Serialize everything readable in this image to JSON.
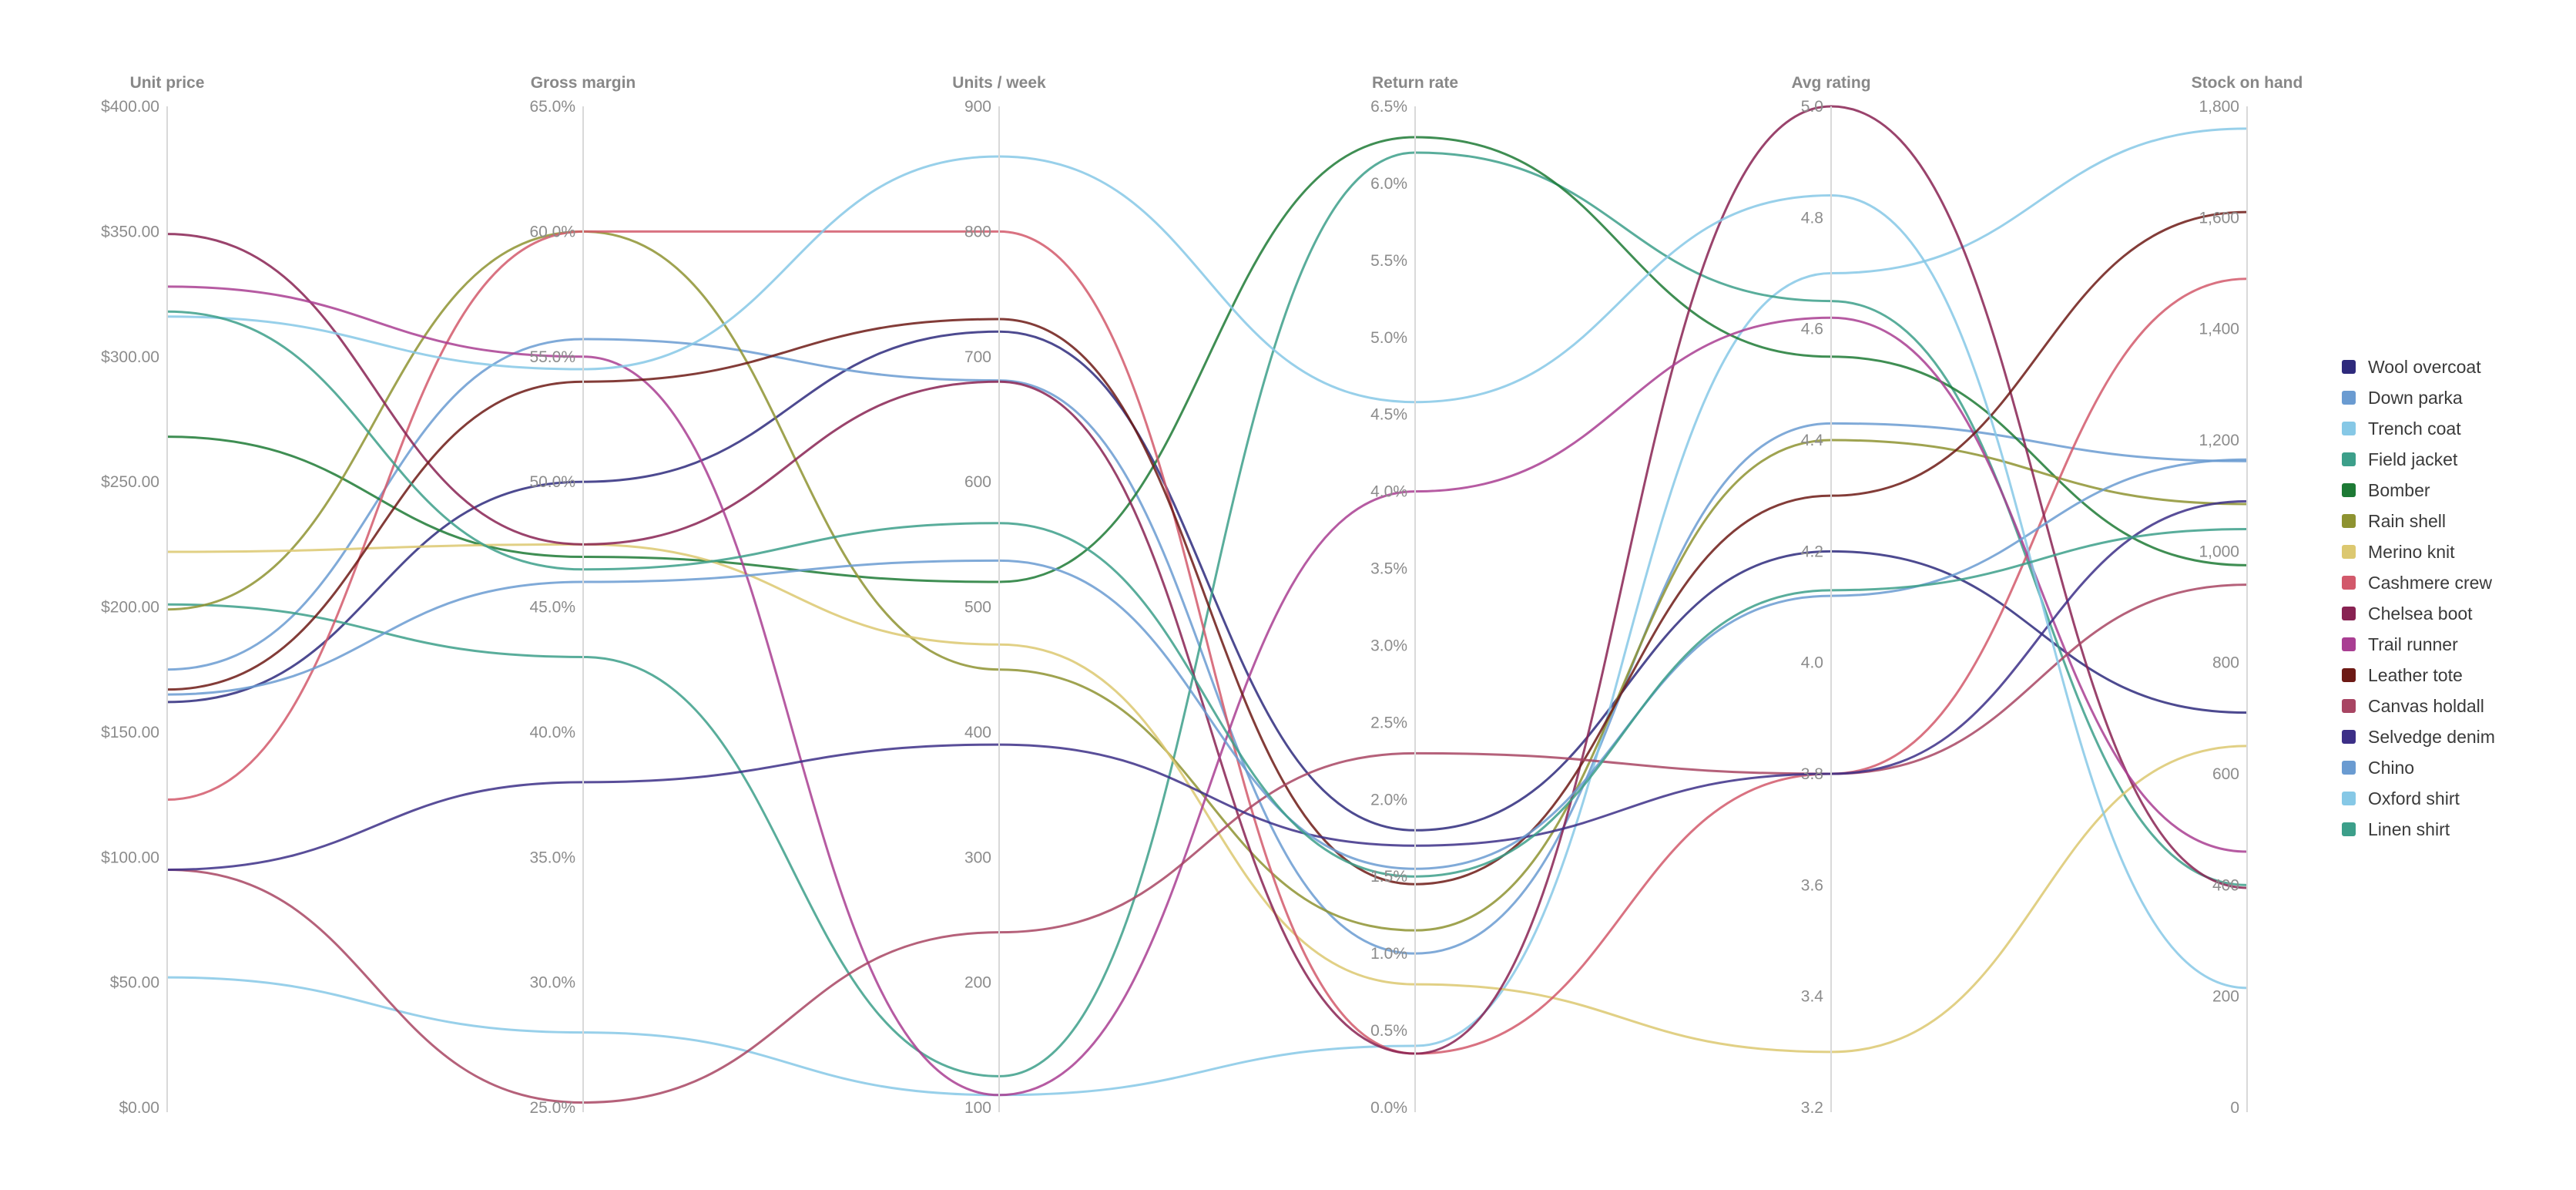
{
  "chart_data": {
    "type": "parallel-coordinates",
    "axes": [
      {
        "name": "Unit price",
        "min": 0,
        "max": 400,
        "ticks": [
          "$0.00",
          "$50.00",
          "$100.00",
          "$150.00",
          "$200.00",
          "$250.00",
          "$300.00",
          "$350.00",
          "$400.00"
        ]
      },
      {
        "name": "Gross margin",
        "min": 25,
        "max": 65,
        "ticks": [
          "25.0%",
          "30.0%",
          "35.0%",
          "40.0%",
          "45.0%",
          "50.0%",
          "55.0%",
          "60.0%",
          "65.0%"
        ]
      },
      {
        "name": "Units / week",
        "min": 100,
        "max": 900,
        "ticks": [
          "100",
          "200",
          "300",
          "400",
          "500",
          "600",
          "700",
          "800",
          "900"
        ]
      },
      {
        "name": "Return rate",
        "min": 0,
        "max": 6.5,
        "ticks": [
          "0.0%",
          "0.5%",
          "1.0%",
          "1.5%",
          "2.0%",
          "2.5%",
          "3.0%",
          "3.5%",
          "4.0%",
          "4.5%",
          "5.0%",
          "5.5%",
          "6.0%",
          "6.5%"
        ]
      },
      {
        "name": "Avg rating",
        "min": 3.2,
        "max": 5.0,
        "ticks": [
          "3.2",
          "3.4",
          "3.6",
          "3.8",
          "4.0",
          "4.2",
          "4.4",
          "4.6",
          "4.8",
          "5.0"
        ]
      },
      {
        "name": "Stock on hand",
        "min": 0,
        "max": 1800,
        "ticks": [
          "0",
          "200",
          "400",
          "600",
          "800",
          "1,000",
          "1,200",
          "1,400",
          "1,600",
          "1,800"
        ]
      }
    ],
    "series": [
      {
        "name": "Wool overcoat",
        "color": "#2e2a7c",
        "values": [
          162,
          50,
          720,
          1.8,
          4.2,
          710
        ]
      },
      {
        "name": "Down parka",
        "color": "#6a9bd1",
        "values": [
          175,
          55.7,
          681,
          1.0,
          4.43,
          1162
        ]
      },
      {
        "name": "Trench coat",
        "color": "#86c8e6",
        "values": [
          52,
          28,
          110,
          0.4,
          4.7,
          1760
        ]
      },
      {
        "name": "Field jacket",
        "color": "#3c9f8a",
        "values": [
          201,
          43,
          125,
          6.2,
          4.65,
          400
        ]
      },
      {
        "name": "Bomber",
        "color": "#1d7a35",
        "values": [
          268,
          47,
          520,
          6.3,
          4.55,
          975
        ]
      },
      {
        "name": "Rain shell",
        "color": "#8e9331",
        "values": [
          199,
          60,
          450,
          1.15,
          4.4,
          1085
        ]
      },
      {
        "name": "Merino knit",
        "color": "#dcc870",
        "values": [
          222,
          47.5,
          470,
          0.8,
          3.3,
          650
        ]
      },
      {
        "name": "Cashmere crew",
        "color": "#d2596b",
        "values": [
          123,
          60,
          800,
          0.35,
          3.8,
          1490
        ]
      },
      {
        "name": "Chelsea boot",
        "color": "#882252",
        "values": [
          349,
          47.5,
          680,
          0.35,
          5.0,
          395
        ]
      },
      {
        "name": "Trail runner",
        "color": "#a93e92",
        "values": [
          328,
          55,
          110,
          4.0,
          4.62,
          460
        ]
      },
      {
        "name": "Leather tote",
        "color": "#6d1a15",
        "values": [
          167,
          54,
          730,
          1.45,
          4.3,
          1610
        ]
      },
      {
        "name": "Canvas holdall",
        "color": "#a84563",
        "values": [
          95,
          25.2,
          240,
          2.3,
          3.8,
          940
        ]
      },
      {
        "name": "Selvedge denim",
        "color": "#3c2f87",
        "values": [
          95,
          38,
          390,
          1.7,
          3.8,
          1090
        ]
      },
      {
        "name": "Chino",
        "color": "#6a9bd1",
        "values": [
          165,
          46,
          537,
          1.55,
          4.12,
          1165
        ]
      },
      {
        "name": "Oxford shirt",
        "color": "#86c8e6",
        "values": [
          316,
          54.5,
          860,
          4.58,
          4.84,
          215
        ]
      },
      {
        "name": "Linen shirt",
        "color": "#3c9f8a",
        "values": [
          318,
          46.5,
          567,
          1.5,
          4.13,
          1040
        ]
      }
    ]
  }
}
